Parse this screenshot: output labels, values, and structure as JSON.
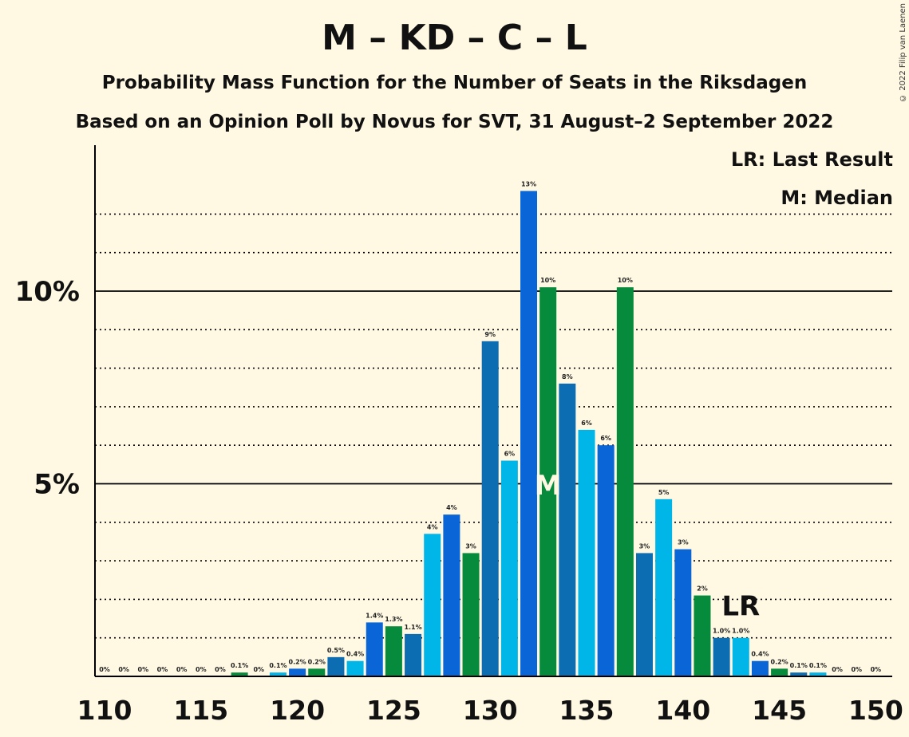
{
  "title": "M – KD – C – L",
  "subtitle": "Probability Mass Function for the Number of Seats in the Riksdagen",
  "subtitle2": "Based on an Opinion Poll by Novus for SVT, 31 August–2 September 2022",
  "copyright": "© 2022 Filip van Laenen",
  "legend": {
    "last_result": "LR: Last Result",
    "median": "M: Median"
  },
  "markers": {
    "median_label": "M",
    "median_seat": 133,
    "last_result_label": "LR",
    "last_result_seat": 143
  },
  "colors": {
    "cycle": [
      "#0c6db3",
      "#00b5e8",
      "#0a66d6",
      "#068a3c"
    ],
    "background": "#fff9e3"
  },
  "chart_data": {
    "type": "bar",
    "x": [
      110,
      111,
      112,
      113,
      114,
      115,
      116,
      117,
      118,
      119,
      120,
      121,
      122,
      123,
      124,
      125,
      126,
      127,
      128,
      129,
      130,
      131,
      132,
      133,
      134,
      135,
      136,
      137,
      138,
      139,
      140,
      141,
      142,
      143,
      144,
      145,
      146,
      147,
      148,
      149,
      150
    ],
    "values": [
      0,
      0,
      0,
      0,
      0,
      0,
      0,
      0.1,
      0,
      0.1,
      0.2,
      0.2,
      0.5,
      0.4,
      1.4,
      1.3,
      1.1,
      3.7,
      4.2,
      3.2,
      8.7,
      5.6,
      12.6,
      10.1,
      7.6,
      6.4,
      6.0,
      10.1,
      3.2,
      4.6,
      3.3,
      2.1,
      1.0,
      1.0,
      0.4,
      0.2,
      0.1,
      0.1,
      0,
      0,
      0
    ],
    "labels": [
      "0%",
      "0%",
      "0%",
      "0%",
      "0%",
      "0%",
      "0%",
      "0.1%",
      "0%",
      "0.1%",
      "0.2%",
      "0.2%",
      "0.5%",
      "0.4%",
      "1.4%",
      "1.3%",
      "1.1%",
      "4%",
      "4%",
      "3%",
      "9%",
      "6%",
      "13%",
      "10%",
      "8%",
      "6%",
      "6%",
      "10%",
      "3%",
      "5%",
      "3%",
      "2%",
      "1.0%",
      "1.0%",
      "0.4%",
      "0.2%",
      "0.1%",
      "0.1%",
      "0%",
      "0%",
      "0%"
    ],
    "x_ticks": [
      "110",
      "115",
      "120",
      "125",
      "130",
      "135",
      "140",
      "145",
      "150"
    ],
    "y_ticks": [
      "5%",
      "10%"
    ],
    "xlim": [
      110,
      150
    ],
    "ylim": [
      0,
      13.8
    ],
    "grid": "dotted every 1%, solid at 5% and 10%"
  }
}
